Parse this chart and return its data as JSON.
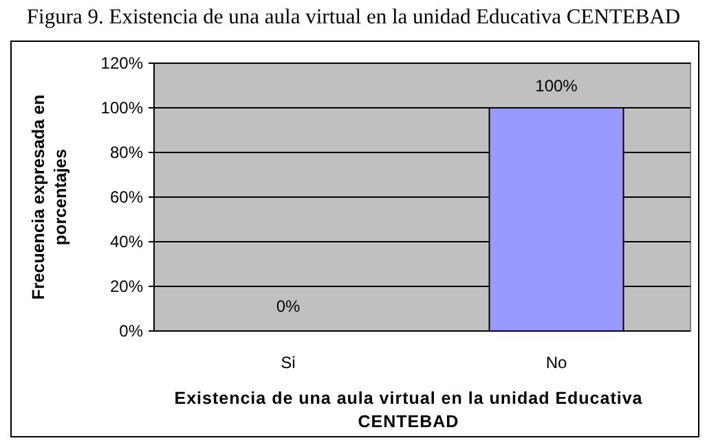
{
  "chart_data": {
    "type": "bar",
    "title": "Figura 9. Existencia de una aula virtual en la unidad Educativa CENTEBAD",
    "xlabel": "Existencia de una aula virtual en la unidad Educativa CENTEBAD",
    "ylabel": "Frecuencia expresada en porcentajes",
    "categories": [
      "Si",
      "No"
    ],
    "values": [
      0,
      100
    ],
    "color": "#9999ff",
    "value_labels": [
      "0%",
      "100%"
    ],
    "ylim": [
      0,
      120
    ],
    "yticks": [
      {
        "value": 0,
        "label": "0%"
      },
      {
        "value": 20,
        "label": "20%"
      },
      {
        "value": 40,
        "label": "40%"
      },
      {
        "value": 60,
        "label": "60%"
      },
      {
        "value": 80,
        "label": "80%"
      },
      {
        "value": 100,
        "label": "100%"
      },
      {
        "value": 120,
        "label": "120%"
      }
    ],
    "grid": "y"
  }
}
